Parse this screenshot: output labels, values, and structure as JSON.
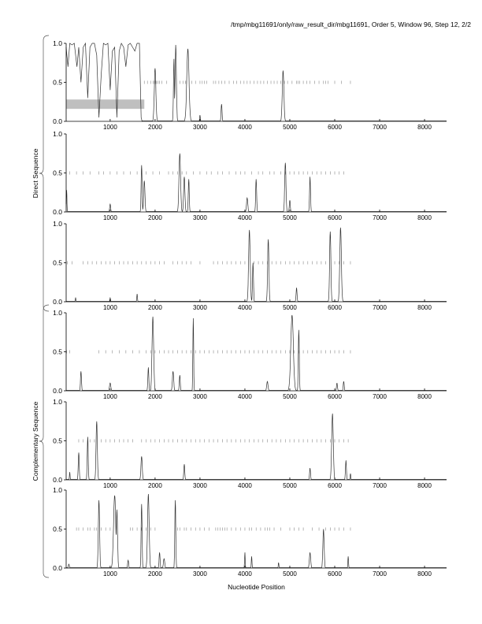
{
  "chart_data": {
    "type": "line",
    "title": "/tmp/mbg11691/only/raw_result_dir/mbg11691, Order 5, Window 96, Step 12, 2/2",
    "xlabel": "Nucleotide Position",
    "xlim": [
      20,
      8490
    ],
    "ylim": [
      0,
      1
    ],
    "xticks": [
      1000,
      2000,
      3000,
      4000,
      5000,
      6000,
      7000,
      8000
    ],
    "yticks": [
      "0.0",
      "0.5",
      "1.0"
    ],
    "groups": [
      {
        "label": "Direct Sequence",
        "panels": [
          0,
          1,
          2
        ]
      },
      {
        "label": "Complementary Sequence",
        "panels": [
          3,
          4,
          5
        ]
      }
    ],
    "panels": [
      {
        "name": "direct-frame-1",
        "highlight": {
          "x": [
            20,
            1760
          ],
          "y": [
            0.16,
            0.28
          ]
        },
        "trace_points": [
          [
            20,
            0.95
          ],
          [
            60,
            0.7
          ],
          [
            100,
            1
          ],
          [
            150,
            0.98
          ],
          [
            200,
            1
          ],
          [
            260,
            0.7
          ],
          [
            300,
            0.95
          ],
          [
            350,
            0.5
          ],
          [
            400,
            0.95
          ],
          [
            450,
            1
          ],
          [
            500,
            0.3
          ],
          [
            550,
            0.95
          ],
          [
            600,
            1
          ],
          [
            650,
            1
          ],
          [
            700,
            0.85
          ],
          [
            750,
            0.05
          ],
          [
            800,
            0.6
          ],
          [
            850,
            1
          ],
          [
            900,
            0.98
          ],
          [
            950,
            1
          ],
          [
            1000,
            0.4
          ],
          [
            1050,
            0.9
          ],
          [
            1100,
            0.95
          ],
          [
            1150,
            0.05
          ],
          [
            1200,
            0.9
          ],
          [
            1250,
            1
          ],
          [
            1300,
            0.95
          ],
          [
            1350,
            0.7
          ],
          [
            1400,
            0.98
          ],
          [
            1450,
            1
          ],
          [
            1500,
            0.95
          ],
          [
            1550,
            0.9
          ],
          [
            1600,
            1
          ],
          [
            1650,
            1
          ],
          [
            1690,
            0.05
          ],
          [
            1710,
            0
          ]
        ],
        "peaks": [
          [
            2000,
            0.68,
            25
          ],
          [
            2420,
            0.8,
            15
          ],
          [
            2460,
            0.98,
            20
          ],
          [
            2730,
            0.93,
            35
          ],
          [
            3000,
            0.08,
            10
          ],
          [
            3480,
            0.22,
            15
          ],
          [
            4850,
            0.65,
            25
          ]
        ],
        "orf_ticks": [
          1760,
          1830,
          1900,
          1960,
          2000,
          2030,
          2060,
          2100,
          2150,
          2260,
          2550,
          2620,
          2680,
          2700,
          2820,
          2900,
          3000,
          3050,
          3100,
          3150,
          3300,
          3350,
          3420,
          3480,
          3550,
          3650,
          3750,
          3820,
          3900,
          3980,
          4050,
          4120,
          4200,
          4280,
          4350,
          4420,
          4500,
          4580,
          4650,
          4720,
          4800,
          4880,
          4950,
          5050,
          5150,
          5180,
          5220,
          5300,
          5380,
          5450,
          5550,
          5650,
          5750,
          5800,
          5850,
          6000,
          6150,
          6350
        ]
      },
      {
        "name": "direct-frame-2",
        "peaks": [
          [
            30,
            0.28,
            10
          ],
          [
            1000,
            0.1,
            15
          ],
          [
            1700,
            0.6,
            15
          ],
          [
            1760,
            0.4,
            20
          ],
          [
            2550,
            0.75,
            25
          ],
          [
            2650,
            0.45,
            20
          ],
          [
            2750,
            0.42,
            15
          ],
          [
            4050,
            0.18,
            20
          ],
          [
            4250,
            0.42,
            15
          ],
          [
            4900,
            0.63,
            20
          ],
          [
            5000,
            0.15,
            15
          ],
          [
            5450,
            0.45,
            15
          ]
        ],
        "orf_ticks": [
          100,
          250,
          400,
          550,
          750,
          850,
          1000,
          1150,
          1300,
          1450,
          1600,
          1700,
          1800,
          1950,
          2100,
          2300,
          2400,
          2500,
          2600,
          2700,
          2850,
          3000,
          3150,
          3250,
          3400,
          3500,
          3650,
          3800,
          3900,
          4000,
          4150,
          4300,
          4400,
          4550,
          4650,
          4800,
          4900,
          5000,
          5100,
          5200,
          5300,
          5400,
          5500,
          5600,
          5700,
          5800,
          5900,
          6000,
          6100,
          6200
        ]
      },
      {
        "name": "direct-frame-3",
        "peaks": [
          [
            230,
            0.05,
            10
          ],
          [
            1000,
            0.05,
            10
          ],
          [
            1600,
            0.1,
            10
          ],
          [
            4100,
            0.92,
            25
          ],
          [
            4180,
            0.5,
            15
          ],
          [
            4520,
            0.8,
            20
          ],
          [
            5150,
            0.18,
            15
          ],
          [
            5900,
            0.9,
            20
          ],
          [
            6130,
            0.95,
            25
          ]
        ],
        "orf_ticks": [
          50,
          150,
          400,
          500,
          600,
          700,
          800,
          900,
          1000,
          1100,
          1200,
          1300,
          1400,
          1500,
          1600,
          1700,
          1800,
          1900,
          2000,
          2100,
          2200,
          2400,
          2500,
          2600,
          2700,
          2800,
          3000,
          3300,
          3400,
          3500,
          3600,
          3700,
          3800,
          3900,
          4000,
          4200,
          4300,
          4400,
          4500,
          4600,
          4700,
          4800,
          4900,
          5000,
          5100,
          5200,
          5300,
          5400,
          5500,
          5600,
          5700,
          5800,
          6000,
          6100,
          6200,
          6350
        ]
      },
      {
        "name": "complementary-frame-1",
        "peaks": [
          [
            350,
            0.25,
            15
          ],
          [
            1000,
            0.1,
            20
          ],
          [
            1850,
            0.3,
            15
          ],
          [
            1950,
            0.95,
            25
          ],
          [
            2400,
            0.25,
            20
          ],
          [
            2550,
            0.2,
            15
          ],
          [
            2850,
            0.93,
            12
          ],
          [
            4500,
            0.12,
            20
          ],
          [
            5050,
            0.97,
            40
          ],
          [
            5200,
            0.78,
            15
          ],
          [
            6050,
            0.1,
            15
          ],
          [
            6200,
            0.12,
            15
          ]
        ],
        "orf_ticks": [
          30,
          100,
          750,
          900,
          1050,
          1200,
          1350,
          1500,
          1650,
          1800,
          1900,
          2000,
          2100,
          2200,
          2300,
          2400,
          2500,
          2600,
          2700,
          2800,
          2900,
          3000,
          3100,
          3200,
          3300,
          3400,
          3500,
          3600,
          3700,
          3800,
          3900,
          4000,
          4100,
          4200,
          4300,
          4400,
          4500,
          4600,
          4700,
          4800,
          4900,
          5000,
          5100,
          5200,
          5300,
          5400,
          5500,
          5600,
          5700,
          5800,
          5900,
          6000,
          6100,
          6200,
          6350
        ]
      },
      {
        "name": "complementary-frame-2",
        "peaks": [
          [
            100,
            0.1,
            10
          ],
          [
            300,
            0.35,
            15
          ],
          [
            500,
            0.55,
            15
          ],
          [
            700,
            0.75,
            20
          ],
          [
            1700,
            0.3,
            20
          ],
          [
            2650,
            0.2,
            15
          ],
          [
            5450,
            0.15,
            15
          ],
          [
            5950,
            0.85,
            25
          ],
          [
            6250,
            0.25,
            15
          ],
          [
            6350,
            0.08,
            10
          ]
        ],
        "orf_ticks": [
          300,
          400,
          550,
          650,
          800,
          900,
          1000,
          1100,
          1200,
          1300,
          1400,
          1500,
          1700,
          1800,
          1900,
          2000,
          2100,
          2200,
          2300,
          2400,
          2500,
          2600,
          2700,
          2800,
          2900,
          3000,
          3100,
          3200,
          3300,
          3400,
          3500,
          3600,
          3700,
          3800,
          3900,
          4000,
          4100,
          4200,
          4300,
          4400,
          4500,
          4600,
          4700,
          4800,
          4900,
          5000,
          5100,
          5200,
          5300,
          5400,
          5500,
          5600,
          5700,
          5800,
          5900,
          6000,
          6100,
          6200,
          6300
        ]
      },
      {
        "name": "complementary-frame-3",
        "peaks": [
          [
            80,
            0.05,
            15
          ],
          [
            750,
            0.87,
            20
          ],
          [
            1100,
            0.93,
            35
          ],
          [
            1150,
            0.75,
            20
          ],
          [
            1400,
            0.1,
            15
          ],
          [
            1700,
            0.82,
            15
          ],
          [
            1850,
            0.95,
            25
          ],
          [
            2100,
            0.2,
            15
          ],
          [
            2200,
            0.12,
            20
          ],
          [
            2450,
            0.87,
            15
          ],
          [
            4000,
            0.2,
            10
          ],
          [
            4150,
            0.15,
            10
          ],
          [
            4750,
            0.07,
            10
          ],
          [
            5450,
            0.2,
            20
          ],
          [
            5750,
            0.5,
            20
          ],
          [
            6300,
            0.15,
            10
          ]
        ],
        "orf_ticks": [
          250,
          300,
          400,
          500,
          550,
          650,
          700,
          800,
          900,
          1000,
          1450,
          1500,
          1600,
          1700,
          1800,
          1900,
          2000,
          2500,
          2550,
          2650,
          2700,
          2800,
          2900,
          3000,
          3100,
          3200,
          3350,
          3400,
          3450,
          3500,
          3550,
          3600,
          3700,
          3800,
          3900,
          4000,
          4100,
          4150,
          4250,
          4350,
          4450,
          4500,
          4550,
          4650,
          4800,
          5000,
          5100,
          5200,
          5300,
          5500,
          5650,
          5800,
          5900,
          6000,
          6100,
          6200,
          6350
        ]
      }
    ]
  },
  "colors": {
    "trace": "#333333",
    "orf": "#888888",
    "highlight": "#bfbfbf",
    "axis": "#000000"
  }
}
